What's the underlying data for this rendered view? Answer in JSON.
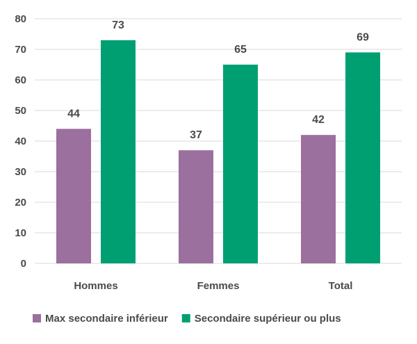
{
  "chart_data": {
    "type": "bar",
    "categories": [
      "Hommes",
      "Femmes",
      "Total"
    ],
    "series": [
      {
        "name": "Max secondaire inférieur",
        "values": [
          44,
          37,
          42
        ],
        "color": "#9b6f9e"
      },
      {
        "name": "Secondaire supérieur ou plus",
        "values": [
          73,
          65,
          69
        ],
        "color": "#009f72"
      }
    ],
    "ylim": [
      0,
      80
    ],
    "yticks": [
      0,
      10,
      20,
      30,
      40,
      50,
      60,
      70,
      80
    ],
    "grid": true,
    "legend_position": "bottom",
    "data_labels": true
  }
}
